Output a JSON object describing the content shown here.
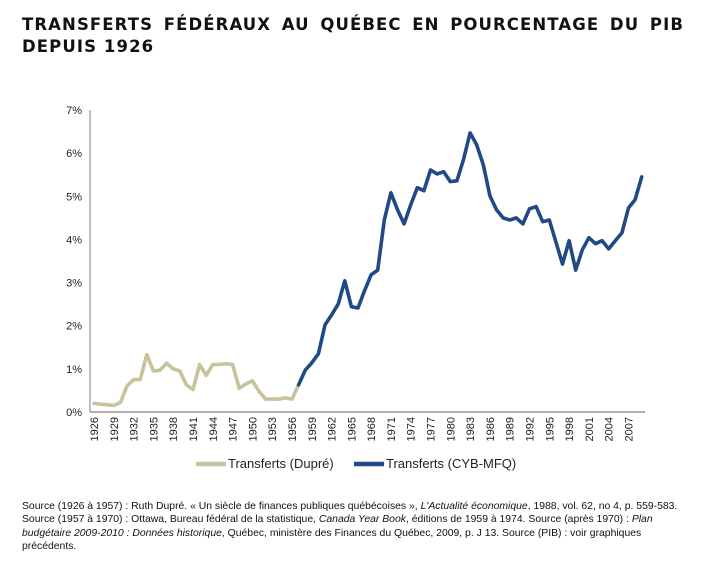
{
  "title": {
    "line1": "TRANSFERTS FÉDÉRAUX AU QUÉBEC EN POURCENTAGE DU PIB",
    "line2": "DEPUIS 1926"
  },
  "colors": {
    "dupre": "#c8c39c",
    "cyb_mfq": "#1f4a86",
    "axis": "#7f7f7f"
  },
  "chart_data": {
    "type": "line",
    "title": "TRANSFERTS FÉDÉRAUX AU QUÉBEC EN POURCENTAGE DU PIB DEPUIS 1926",
    "xlabel": "",
    "ylabel": "",
    "xlim": [
      1926,
      2009
    ],
    "ylim": [
      0,
      7
    ],
    "y_ticks": [
      0,
      1,
      2,
      3,
      4,
      5,
      6,
      7
    ],
    "y_tick_labels": [
      "0%",
      "1%",
      "2%",
      "3%",
      "4%",
      "5%",
      "6%",
      "7%"
    ],
    "x_tick_labels": [
      "1926",
      "1929",
      "1932",
      "1935",
      "1938",
      "1941",
      "1944",
      "1947",
      "1950",
      "1953",
      "1956",
      "1959",
      "1962",
      "1965",
      "1968",
      "1971",
      "1974",
      "1977",
      "1980",
      "1983",
      "1986",
      "1989",
      "1992",
      "1995",
      "1998",
      "2001",
      "2004",
      "2007"
    ],
    "grid": false,
    "legend_position": "bottom",
    "series": [
      {
        "name": "Transferts (Dupré)",
        "x": [
          1926,
          1927,
          1928,
          1929,
          1930,
          1931,
          1932,
          1933,
          1934,
          1935,
          1936,
          1937,
          1938,
          1939,
          1940,
          1941,
          1942,
          1943,
          1944,
          1945,
          1946,
          1947,
          1948,
          1949,
          1950,
          1951,
          1952,
          1953,
          1954,
          1955,
          1956,
          1957
        ],
        "values": [
          0.2,
          0.18,
          0.17,
          0.15,
          0.22,
          0.6,
          0.75,
          0.75,
          1.33,
          0.95,
          0.97,
          1.13,
          1.0,
          0.95,
          0.63,
          0.52,
          1.1,
          0.85,
          1.1,
          1.1,
          1.12,
          1.1,
          0.55,
          0.65,
          0.72,
          0.48,
          0.3,
          0.3,
          0.3,
          0.33,
          0.3,
          0.63
        ]
      },
      {
        "name": "Transferts (CYB-MFQ)",
        "x": [
          1957,
          1958,
          1959,
          1960,
          1961,
          1962,
          1963,
          1964,
          1965,
          1966,
          1967,
          1968,
          1969,
          1970,
          1971,
          1972,
          1973,
          1974,
          1975,
          1976,
          1977,
          1978,
          1979,
          1980,
          1981,
          1982,
          1983,
          1984,
          1985,
          1986,
          1987,
          1988,
          1989,
          1990,
          1991,
          1992,
          1993,
          1994,
          1995,
          1996,
          1997,
          1998,
          1999,
          2000,
          2001,
          2002,
          2003,
          2004,
          2005,
          2006,
          2007,
          2008,
          2009
        ],
        "values": [
          0.63,
          0.97,
          1.14,
          1.35,
          2.02,
          2.25,
          2.5,
          3.04,
          2.44,
          2.41,
          2.81,
          3.18,
          3.29,
          4.45,
          5.08,
          4.69,
          4.36,
          4.8,
          5.2,
          5.13,
          5.61,
          5.52,
          5.57,
          5.34,
          5.36,
          5.85,
          6.47,
          6.19,
          5.73,
          5.01,
          4.69,
          4.5,
          4.45,
          4.5,
          4.36,
          4.71,
          4.76,
          4.41,
          4.45,
          3.94,
          3.43,
          3.97,
          3.29,
          3.76,
          4.04,
          3.9,
          3.97,
          3.78,
          3.97,
          4.15,
          4.73,
          4.92,
          5.45
        ]
      }
    ]
  },
  "legend": {
    "items": [
      "Transferts (Dupré)",
      "Transferts (CYB-MFQ)"
    ]
  },
  "source": {
    "p1": "Source (1926 à 1957) : Ruth Dupré. « Un siècle de finances publiques québécoises », ",
    "p1_italic": "L'Actualité économique",
    "p2": ", 1988, vol. 62, no 4, p. 559-583. Source (1957 à 1970) : Ottawa, Bureau fédéral de la statistique, ",
    "p2_italic": "Canada Year Book",
    "p3": ", éditions de 1959 à 1974. Source (après 1970) : ",
    "p3_italic": "Plan budgétaire 2009-2010 : Données historique",
    "p4": ", Québec, ministère des Finances du Québec, 2009, p. J 13. Source (PIB) : voir graphiques précédents."
  }
}
